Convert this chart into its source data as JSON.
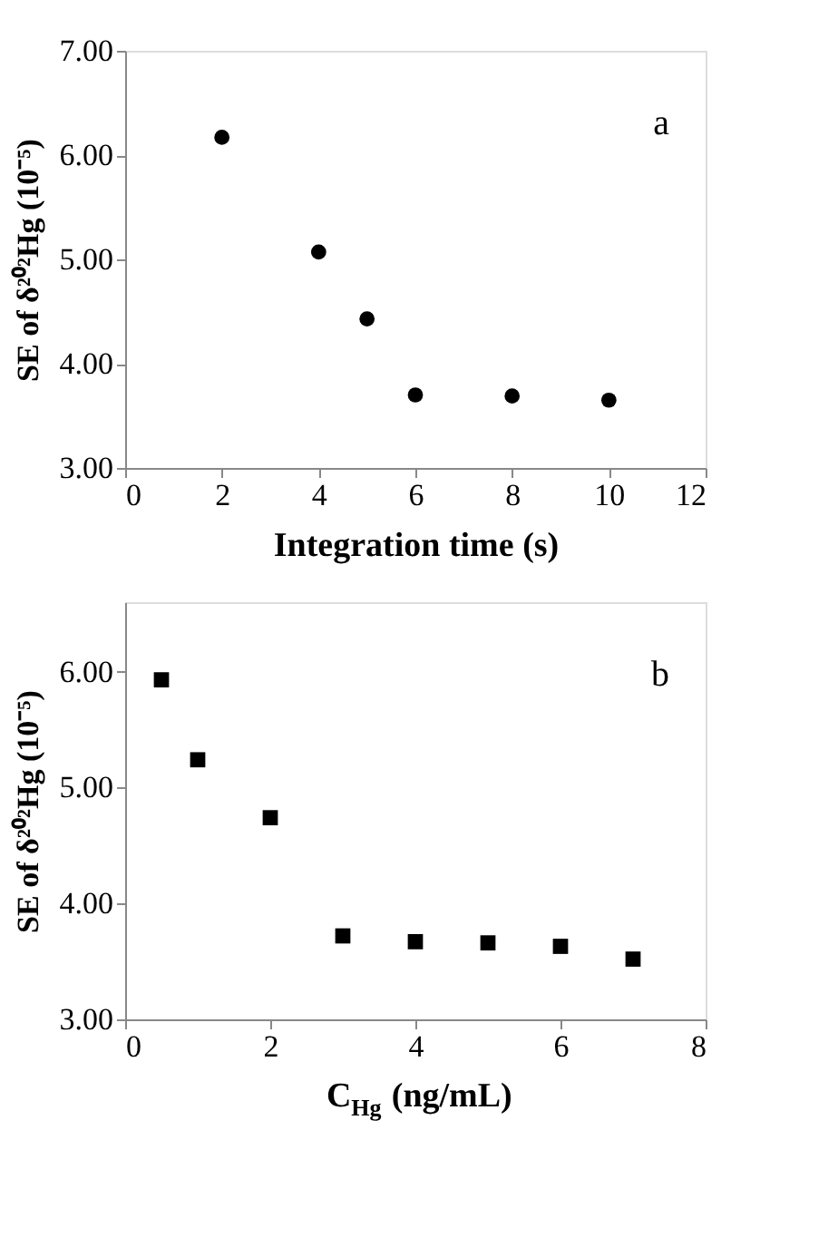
{
  "chart_data": [
    {
      "type": "scatter",
      "marker": "circle",
      "x": [
        2,
        4,
        5,
        6,
        8,
        10
      ],
      "series": [
        {
          "color": "#000000",
          "values": [
            6.17,
            5.07,
            4.43,
            3.7,
            3.69,
            3.65
          ]
        }
      ],
      "xlabel": "Integration time (s)",
      "ylabel": "SE of  δ²⁰²Hg (10⁻⁵)",
      "xlim": [
        0,
        12
      ],
      "xticks": [
        0,
        2,
        4,
        6,
        8,
        10,
        12
      ],
      "ylim": [
        3,
        7
      ],
      "yticks": [
        {
          "value": 3,
          "label": "3.00"
        },
        {
          "value": 4,
          "label": "4.00"
        },
        {
          "value": 5,
          "label": "5.00"
        },
        {
          "value": 6,
          "label": "6.00"
        },
        {
          "value": 7,
          "label": "7.00"
        }
      ],
      "grid": false,
      "annotations": [
        "a"
      ]
    },
    {
      "type": "scatter",
      "marker": "square",
      "x": [
        0.5,
        1,
        2,
        3,
        4,
        5,
        6,
        7
      ],
      "series": [
        {
          "color": "#000000",
          "values": [
            5.93,
            5.24,
            4.74,
            3.72,
            3.67,
            3.66,
            3.63,
            3.52
          ]
        }
      ],
      "xlabel": "C$_{Hg}$ (ng/mL)",
      "ylabel": "SE of  δ²⁰²Hg (10⁻⁵)",
      "xlim": [
        0,
        8
      ],
      "xticks": [
        0,
        2,
        4,
        6,
        8
      ],
      "ylim": [
        3,
        6.6
      ],
      "yticks": [
        {
          "value": 3,
          "label": "3.00"
        },
        {
          "value": 4,
          "label": "4.00"
        },
        {
          "value": 5,
          "label": "5.00"
        },
        {
          "value": 6,
          "label": "6.00"
        }
      ],
      "grid": false,
      "annotations": [
        "b"
      ]
    }
  ]
}
